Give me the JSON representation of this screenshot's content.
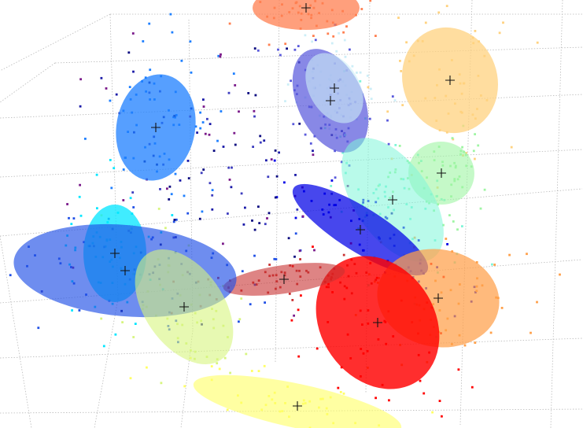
{
  "chart_data": {
    "type": "scatter",
    "title": "",
    "xlabel": "",
    "ylabel": "",
    "zlabel": "",
    "view": "3d-perspective",
    "grid": true,
    "legend": "none",
    "clusters": [
      {
        "id": "c1",
        "color": "#ff7f50",
        "opacity": 0.75,
        "center": [
          389,
          10
        ],
        "radii": [
          68,
          28
        ],
        "angle": 0
      },
      {
        "id": "c2",
        "color": "#ffd27f",
        "opacity": 0.75,
        "center": [
          572,
          102
        ],
        "radii": [
          60,
          68
        ],
        "angle": -20
      },
      {
        "id": "c3",
        "color": "#1e7fff",
        "opacity": 0.75,
        "center": [
          198,
          162
        ],
        "radii": [
          50,
          68
        ],
        "angle": 10
      },
      {
        "id": "c4",
        "color": "#5a5adc",
        "opacity": 0.72,
        "center": [
          420,
          128
        ],
        "radii": [
          42,
          70
        ],
        "angle": -25
      },
      {
        "id": "c5",
        "color": "#cdeef7",
        "opacity": 0.6,
        "center": [
          425,
          112
        ],
        "radii": [
          32,
          48
        ],
        "angle": -30
      },
      {
        "id": "c6",
        "color": "#9ff5a3",
        "opacity": 0.6,
        "center": [
          561,
          220
        ],
        "radii": [
          42,
          40
        ],
        "angle": 10
      },
      {
        "id": "c7",
        "color": "#7ff5d8",
        "opacity": 0.55,
        "center": [
          499,
          254
        ],
        "radii": [
          48,
          90
        ],
        "angle": -35
      },
      {
        "id": "c8",
        "color": "#0000e6",
        "opacity": 0.72,
        "center": [
          458,
          292
        ],
        "radii": [
          28,
          100
        ],
        "angle": -58
      },
      {
        "id": "c9",
        "color": "#ffa04a",
        "opacity": 0.72,
        "center": [
          557,
          379
        ],
        "radii": [
          78,
          62
        ],
        "angle": 10
      },
      {
        "id": "c10",
        "color": "#ff0000",
        "opacity": 0.82,
        "center": [
          480,
          410
        ],
        "radii": [
          72,
          90
        ],
        "angle": -35
      },
      {
        "id": "c11",
        "color": "#c83232",
        "opacity": 0.6,
        "center": [
          361,
          355
        ],
        "radii": [
          78,
          18
        ],
        "angle": -8
      },
      {
        "id": "c12",
        "color": "#00e6ff",
        "opacity": 0.75,
        "center": [
          146,
          322
        ],
        "radii": [
          40,
          62
        ],
        "angle": 0
      },
      {
        "id": "c13",
        "color": "#2050e6",
        "opacity": 0.65,
        "center": [
          159,
          344
        ],
        "radii": [
          142,
          58
        ],
        "angle": 5
      },
      {
        "id": "c14",
        "color": "#d7f57f",
        "opacity": 0.6,
        "center": [
          234,
          390
        ],
        "radii": [
          50,
          82
        ],
        "angle": -35
      },
      {
        "id": "c15",
        "color": "#ffff64",
        "opacity": 0.6,
        "center": [
          378,
          516
        ],
        "radii": [
          135,
          28
        ],
        "angle": 12
      }
    ]
  }
}
